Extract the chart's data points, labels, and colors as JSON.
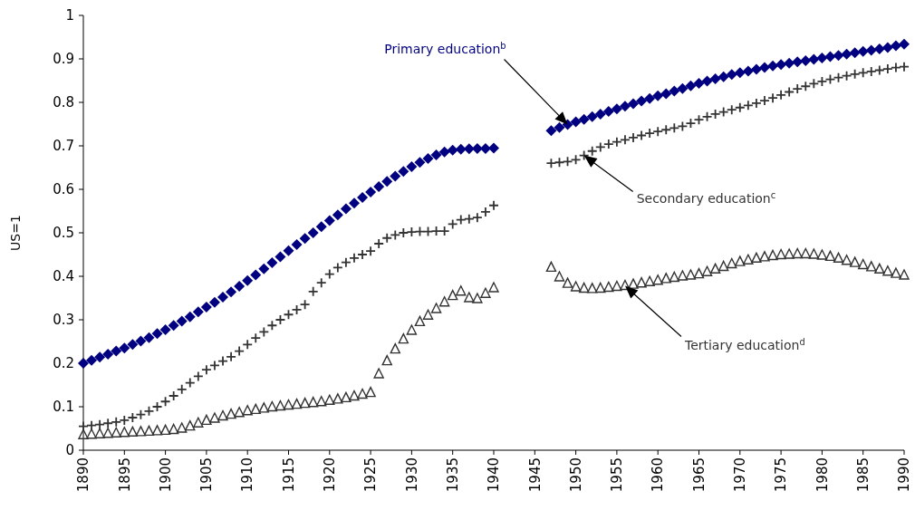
{
  "chart_data": {
    "type": "scatter",
    "ylabel": "US=1",
    "xlim": [
      1890,
      1990
    ],
    "ylim": [
      0,
      1
    ],
    "xticks": [
      1890,
      1895,
      1900,
      1905,
      1910,
      1915,
      1920,
      1925,
      1930,
      1935,
      1940,
      1945,
      1950,
      1955,
      1960,
      1965,
      1970,
      1975,
      1980,
      1985,
      1990
    ],
    "yticks": [
      0,
      0.1,
      0.2,
      0.3,
      0.4,
      0.5,
      0.6,
      0.7,
      0.8,
      0.9,
      1
    ],
    "grid": false,
    "x": [
      1890,
      1891,
      1892,
      1893,
      1894,
      1895,
      1896,
      1897,
      1898,
      1899,
      1900,
      1901,
      1902,
      1903,
      1904,
      1905,
      1906,
      1907,
      1908,
      1909,
      1910,
      1911,
      1912,
      1913,
      1914,
      1915,
      1916,
      1917,
      1918,
      1919,
      1920,
      1921,
      1922,
      1923,
      1924,
      1925,
      1926,
      1927,
      1928,
      1929,
      1930,
      1931,
      1932,
      1933,
      1934,
      1935,
      1936,
      1937,
      1938,
      1939,
      1940,
      1947,
      1948,
      1949,
      1950,
      1951,
      1952,
      1953,
      1954,
      1955,
      1956,
      1957,
      1958,
      1959,
      1960,
      1961,
      1962,
      1963,
      1964,
      1965,
      1966,
      1967,
      1968,
      1969,
      1970,
      1971,
      1972,
      1973,
      1974,
      1975,
      1976,
      1977,
      1978,
      1979,
      1980,
      1981,
      1982,
      1983,
      1984,
      1985,
      1986,
      1987,
      1988,
      1989,
      1990
    ],
    "series": [
      {
        "name": "Primary education$^{b}$",
        "color": "#000080",
        "marker": "diamond",
        "values": [
          0.2,
          0.207,
          0.214,
          0.221,
          0.228,
          0.235,
          0.243,
          0.251,
          0.259,
          0.268,
          0.277,
          0.287,
          0.297,
          0.307,
          0.318,
          0.329,
          0.34,
          0.352,
          0.364,
          0.377,
          0.39,
          0.403,
          0.417,
          0.431,
          0.445,
          0.459,
          0.473,
          0.487,
          0.5,
          0.514,
          0.528,
          0.541,
          0.555,
          0.568,
          0.581,
          0.594,
          0.606,
          0.618,
          0.63,
          0.641,
          0.652,
          0.662,
          0.671,
          0.679,
          0.686,
          0.69,
          0.692,
          0.693,
          0.694,
          0.694,
          0.695,
          0.735,
          0.742,
          0.749,
          0.755,
          0.761,
          0.767,
          0.773,
          0.779,
          0.785,
          0.791,
          0.797,
          0.803,
          0.809,
          0.815,
          0.82,
          0.826,
          0.832,
          0.838,
          0.844,
          0.849,
          0.854,
          0.859,
          0.864,
          0.868,
          0.872,
          0.876,
          0.88,
          0.884,
          0.887,
          0.89,
          0.893,
          0.896,
          0.899,
          0.902,
          0.905,
          0.908,
          0.911,
          0.914,
          0.917,
          0.92,
          0.923,
          0.926,
          0.93,
          0.934
        ]
      },
      {
        "name": "Secondary education$^{c}$",
        "color": "#333333",
        "marker": "cross",
        "values": [
          0.055,
          0.057,
          0.059,
          0.062,
          0.065,
          0.069,
          0.075,
          0.082,
          0.09,
          0.1,
          0.112,
          0.125,
          0.14,
          0.155,
          0.17,
          0.185,
          0.195,
          0.205,
          0.215,
          0.228,
          0.243,
          0.258,
          0.272,
          0.287,
          0.3,
          0.312,
          0.323,
          0.335,
          0.365,
          0.385,
          0.405,
          0.42,
          0.432,
          0.442,
          0.45,
          0.458,
          0.475,
          0.488,
          0.495,
          0.5,
          0.502,
          0.503,
          0.503,
          0.504,
          0.504,
          0.52,
          0.53,
          0.532,
          0.535,
          0.548,
          0.563,
          0.66,
          0.662,
          0.664,
          0.668,
          0.678,
          0.688,
          0.697,
          0.704,
          0.709,
          0.714,
          0.719,
          0.724,
          0.729,
          0.733,
          0.737,
          0.741,
          0.745,
          0.752,
          0.76,
          0.767,
          0.773,
          0.778,
          0.783,
          0.788,
          0.793,
          0.798,
          0.804,
          0.81,
          0.817,
          0.824,
          0.831,
          0.837,
          0.843,
          0.848,
          0.853,
          0.857,
          0.861,
          0.865,
          0.868,
          0.871,
          0.874,
          0.877,
          0.88,
          0.882
        ]
      },
      {
        "name": "Tertiary education$^{d}$",
        "color": "#333333",
        "marker": "triangle",
        "values": [
          0.035,
          0.036,
          0.037,
          0.038,
          0.039,
          0.04,
          0.041,
          0.042,
          0.043,
          0.044,
          0.045,
          0.047,
          0.05,
          0.055,
          0.062,
          0.068,
          0.073,
          0.078,
          0.082,
          0.086,
          0.09,
          0.093,
          0.096,
          0.099,
          0.101,
          0.103,
          0.105,
          0.107,
          0.109,
          0.111,
          0.114,
          0.117,
          0.12,
          0.124,
          0.128,
          0.132,
          0.175,
          0.205,
          0.232,
          0.255,
          0.275,
          0.295,
          0.31,
          0.325,
          0.34,
          0.355,
          0.365,
          0.35,
          0.348,
          0.36,
          0.373,
          0.42,
          0.398,
          0.383,
          0.375,
          0.372,
          0.371,
          0.372,
          0.374,
          0.376,
          0.378,
          0.381,
          0.384,
          0.387,
          0.39,
          0.394,
          0.397,
          0.4,
          0.402,
          0.405,
          0.41,
          0.416,
          0.422,
          0.428,
          0.433,
          0.437,
          0.441,
          0.444,
          0.447,
          0.449,
          0.45,
          0.451,
          0.451,
          0.45,
          0.448,
          0.445,
          0.441,
          0.436,
          0.431,
          0.426,
          0.421,
          0.416,
          0.411,
          0.406,
          0.402
        ]
      }
    ]
  }
}
